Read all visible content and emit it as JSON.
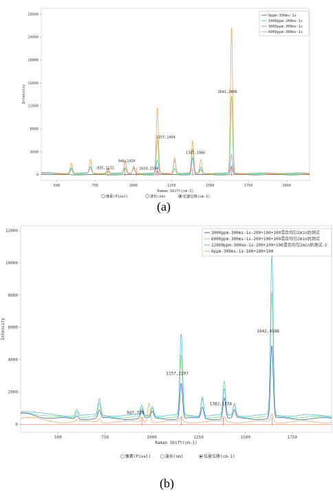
{
  "panels": [
    {
      "caption": "(a)",
      "radio": [
        {
          "label": "像素(Pixel)",
          "checked": false
        },
        {
          "label": "波长(nm)",
          "checked": false
        },
        {
          "label": "拉曼位移(cm-1)",
          "checked": true
        }
      ]
    },
    {
      "caption": "(b)",
      "radio": [
        {
          "label": "像素(Pixel)",
          "checked": false
        },
        {
          "label": "波长(nm)",
          "checked": false
        },
        {
          "label": "拉曼位移(cm-1)",
          "checked": true
        }
      ]
    }
  ],
  "chart_data": [
    {
      "type": "line",
      "title": "",
      "xlabel": "Raman Shift(cm-1)",
      "ylabel": "Intensity",
      "xlim": [
        400,
        2150
      ],
      "ylim": [
        -1000,
        29000
      ],
      "xticks": [
        500,
        750,
        1000,
        1250,
        1500,
        1750,
        2000
      ],
      "yticks": [
        0,
        4000,
        8000,
        12000,
        16000,
        20000,
        24000,
        28000
      ],
      "grid": false,
      "legend_position": "top-right",
      "series": [
        {
          "name": "0ppm-300ms-1s",
          "color": "#5b6fc6",
          "baseline": 0,
          "peaks": [
            [
              1157,
              600
            ],
            [
              1387,
              3000
            ],
            [
              1641,
              1400
            ]
          ]
        },
        {
          "name": "1000ppm-200ms-1s",
          "color": "#5fd36b",
          "baseline": 150,
          "peaks": [
            [
              596,
              900
            ],
            [
              720,
              1200
            ],
            [
              835,
              500
            ],
            [
              947,
              1000
            ],
            [
              1003,
              900
            ],
            [
              1157,
              6000
            ],
            [
              1270,
              1000
            ],
            [
              1387,
              4300
            ],
            [
              1441,
              700
            ],
            [
              1641,
              13500
            ]
          ]
        },
        {
          "name": "3000ppm-300ms-1s",
          "color": "#58b8e8",
          "baseline": 250,
          "peaks": [
            [
              596,
              1000
            ],
            [
              720,
              1000
            ],
            [
              835,
              800
            ],
            [
              947,
              2000
            ],
            [
              1003,
              1000
            ],
            [
              1157,
              2200
            ],
            [
              1270,
              2300
            ],
            [
              1387,
              2600
            ],
            [
              1441,
              1000
            ],
            [
              1641,
              3200
            ]
          ]
        },
        {
          "name": "6000ppm-300ms-1s",
          "color": "#f4a45c",
          "baseline": 200,
          "peaks": [
            [
              596,
              1800
            ],
            [
              720,
              2500
            ],
            [
              835,
              900
            ],
            [
              947,
              2400
            ],
            [
              1003,
              1400
            ],
            [
              1157,
              11500
            ],
            [
              1270,
              2800
            ],
            [
              1387,
              5700
            ],
            [
              1441,
              2500
            ],
            [
              1641,
              25500
            ]
          ]
        }
      ],
      "annotations": [
        {
          "text": "835,1131",
          "x": 835
        },
        {
          "text": "946,2450",
          "x": 946
        },
        {
          "text": "1020,1550",
          "x": 1020
        },
        {
          "text": "1157,1454",
          "x": 1157
        },
        {
          "text": "1387,1966",
          "x": 1387
        },
        {
          "text": "1641,2808",
          "x": 1641
        }
      ]
    },
    {
      "type": "line",
      "title": "",
      "xlabel": "Raman Shift(cm-1)",
      "ylabel": "Intensity",
      "xlim": [
        300,
        1960
      ],
      "ylim": [
        -500,
        12300
      ],
      "xticks": [
        500,
        750,
        1000,
        1250,
        1500,
        1750
      ],
      "yticks": [
        0,
        2000,
        4000,
        6000,
        8000,
        10000,
        12000
      ],
      "grid": false,
      "legend_position": "top-right",
      "series": [
        {
          "name": "3000ppm-300ms-1s-200+100+100混合均匀2min后测试",
          "color": "#4b5fb0",
          "baseline": 350,
          "peaks": [
            [
              600,
              200
            ],
            [
              720,
              500
            ],
            [
              947,
              500
            ],
            [
              1003,
              400
            ],
            [
              1157,
              2200
            ],
            [
              1270,
              700
            ],
            [
              1387,
              1300
            ],
            [
              1441,
              500
            ],
            [
              1641,
              4500
            ]
          ]
        },
        {
          "name": "6000ppm-300ms-1s-200+100+100混合均匀2min后测试",
          "color": "#6ee07a",
          "baseline": 450,
          "peaks": [
            [
              600,
              400
            ],
            [
              720,
              800
            ],
            [
              947,
              500
            ],
            [
              1003,
              500
            ],
            [
              1157,
              3800
            ],
            [
              1270,
              1300
            ],
            [
              1387,
              2200
            ],
            [
              1441,
              800
            ],
            [
              1641,
              7700
            ]
          ]
        },
        {
          "name": "12800ppm-300ms-1s-200+100+100混合均匀2min后测试-2",
          "color": "#5bb8e6",
          "baseline": 550,
          "peaks": [
            [
              600,
              400
            ],
            [
              720,
              1000
            ],
            [
              947,
              600
            ],
            [
              1003,
              600
            ],
            [
              1157,
              5000
            ],
            [
              1270,
              1100
            ],
            [
              1387,
              1600
            ],
            [
              1441,
              700
            ],
            [
              1641,
              9900
            ]
          ]
        },
        {
          "name": "0ppm-300ms-1s-100+100+100",
          "color": "#f2a760",
          "baseline": 150,
          "peaks": [
            [
              600,
              100
            ],
            [
              720,
              200
            ],
            [
              947,
              300
            ],
            [
              985,
              1200
            ],
            [
              1157,
              300
            ],
            [
              1387,
              300
            ],
            [
              1641,
              500
            ]
          ]
        }
      ],
      "annotations": [
        {
          "text": "947,726",
          "x": 947
        },
        {
          "text": "1157,2207",
          "x": 1157
        },
        {
          "text": "1382,1334",
          "x": 1382
        },
        {
          "text": "1642,4588",
          "x": 1642
        }
      ]
    }
  ]
}
